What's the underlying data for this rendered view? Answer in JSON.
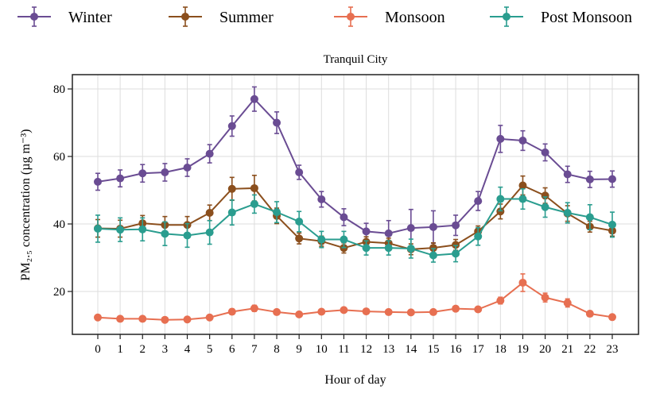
{
  "chart_data": {
    "type": "line",
    "title": "Tranquil City",
    "xlabel": "Hour of day",
    "ylabel": "PM₂.₅ concentration (µg m⁻³)",
    "x": [
      0,
      1,
      2,
      3,
      4,
      5,
      6,
      7,
      8,
      9,
      10,
      11,
      12,
      13,
      14,
      15,
      16,
      17,
      18,
      19,
      20,
      21,
      22,
      23
    ],
    "xticks": [
      "0",
      "1",
      "2",
      "3",
      "4",
      "5",
      "6",
      "7",
      "8",
      "9",
      "10",
      "11",
      "12",
      "13",
      "14",
      "15",
      "16",
      "17",
      "18",
      "19",
      "20",
      "21",
      "22",
      "23"
    ],
    "ylim": [
      8,
      87
    ],
    "yticks": [
      20,
      40,
      60,
      80
    ],
    "grid": true,
    "legend_placement": "top (outside)",
    "error_bars": true,
    "series": [
      {
        "name": "Winter",
        "color": "#6a4c93",
        "values": [
          52.5,
          53.5,
          55.0,
          55.3,
          56.7,
          60.8,
          69.0,
          77.0,
          70.0,
          55.3,
          47.3,
          42.0,
          37.8,
          37.2,
          38.8,
          39.1,
          39.6,
          46.8,
          65.2,
          64.7,
          61.2,
          54.7,
          53.2,
          53.3
        ],
        "errors": [
          2.5,
          2.5,
          2.6,
          2.6,
          2.6,
          2.7,
          3.0,
          3.6,
          3.2,
          2.1,
          2.3,
          2.5,
          2.4,
          3.8,
          5.5,
          4.8,
          3.0,
          2.8,
          4.0,
          2.9,
          2.5,
          2.4,
          2.4,
          2.4
        ]
      },
      {
        "name": "Summer",
        "color": "#8b4f1d",
        "values": [
          38.7,
          38.6,
          40.2,
          39.7,
          39.7,
          43.3,
          50.4,
          50.6,
          42.4,
          35.7,
          34.9,
          32.9,
          34.7,
          34.3,
          32.5,
          32.9,
          33.8,
          37.8,
          43.7,
          51.4,
          48.4,
          43.1,
          39.2,
          38.0
        ],
        "errors": [
          2.6,
          2.5,
          2.3,
          2.5,
          2.5,
          2.3,
          3.4,
          3.8,
          2.3,
          1.6,
          1.5,
          1.5,
          1.5,
          1.5,
          1.6,
          1.5,
          1.6,
          1.6,
          2.2,
          2.8,
          2.3,
          2.3,
          1.6,
          1.6
        ]
      },
      {
        "name": "Monsoon",
        "color": "#e76f51",
        "values": [
          12.3,
          11.9,
          11.9,
          11.6,
          11.7,
          12.3,
          14.0,
          15.0,
          13.9,
          13.2,
          14.0,
          14.5,
          14.1,
          13.9,
          13.8,
          13.9,
          14.9,
          14.7,
          17.3,
          22.6,
          18.2,
          16.6,
          13.4,
          12.4
        ],
        "errors": [
          0.6,
          0.5,
          0.5,
          0.5,
          0.5,
          0.6,
          0.8,
          0.9,
          0.7,
          0.6,
          0.6,
          0.7,
          0.6,
          0.6,
          0.6,
          0.6,
          0.7,
          0.7,
          1.0,
          2.6,
          1.3,
          1.2,
          0.8,
          0.6
        ]
      },
      {
        "name": "Post Monsoon",
        "color": "#2a9d8f",
        "values": [
          38.6,
          38.3,
          38.4,
          37.1,
          36.6,
          37.5,
          43.4,
          45.9,
          43.5,
          40.7,
          35.4,
          35.4,
          32.9,
          32.9,
          32.7,
          30.7,
          31.2,
          36.3,
          47.4,
          47.4,
          45.0,
          43.3,
          42.0,
          39.8
        ],
        "errors": [
          4.0,
          3.5,
          3.4,
          3.5,
          3.5,
          3.5,
          3.7,
          2.7,
          3.1,
          3.0,
          2.4,
          2.4,
          2.1,
          2.1,
          2.8,
          2.0,
          2.4,
          2.6,
          3.5,
          3.0,
          3.0,
          3.0,
          3.7,
          3.7
        ]
      }
    ]
  }
}
